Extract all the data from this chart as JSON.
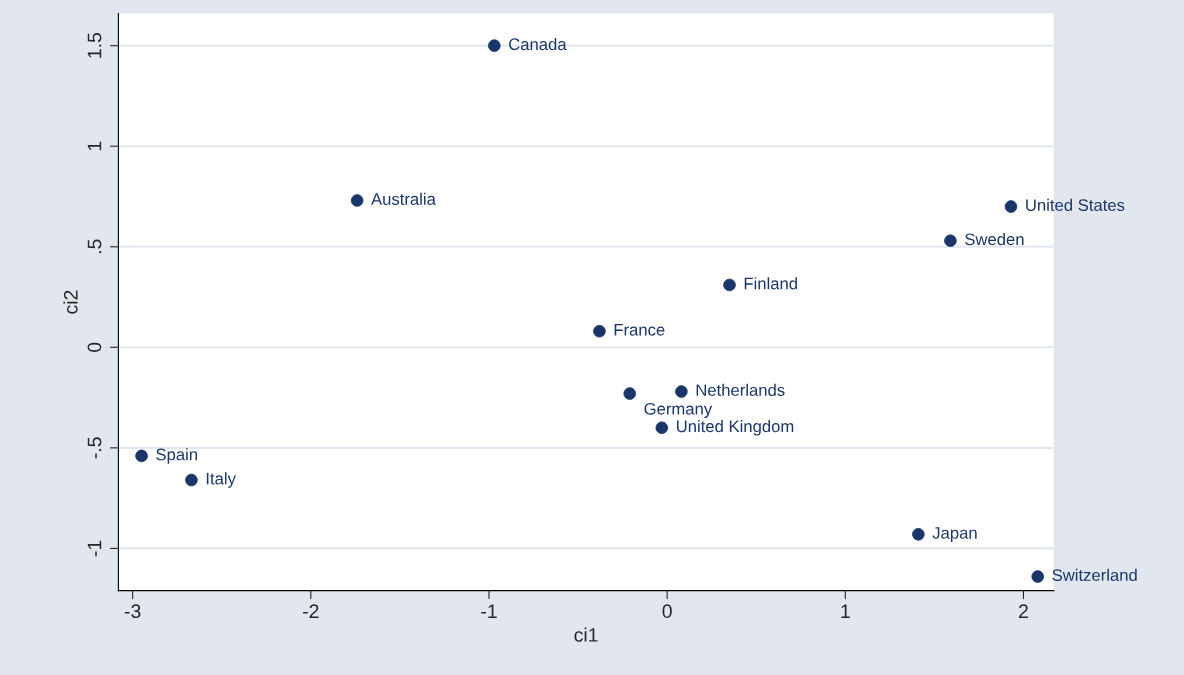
{
  "chart_data": {
    "type": "scatter",
    "xlabel": "ci1",
    "ylabel": "ci2",
    "x": [
      -0.97,
      -1.74,
      1.93,
      1.59,
      0.35,
      -0.38,
      -0.21,
      0.08,
      -0.03,
      -2.95,
      -2.67,
      1.41,
      2.08
    ],
    "series": [
      {
        "color": "#1a3668",
        "values": [
          1.5,
          0.73,
          0.7,
          0.53,
          0.31,
          0.08,
          -0.23,
          -0.22,
          -0.4,
          -0.54,
          -0.66,
          -0.93,
          -1.14
        ]
      }
    ],
    "annotations": [
      {
        "text": "Canada",
        "x": -0.97,
        "y": 1.5
      },
      {
        "text": "Australia",
        "x": -1.74,
        "y": 0.73
      },
      {
        "text": "United States",
        "x": 1.93,
        "y": 0.7
      },
      {
        "text": "Sweden",
        "x": 1.59,
        "y": 0.53
      },
      {
        "text": "Finland",
        "x": 0.35,
        "y": 0.31
      },
      {
        "text": "France",
        "x": -0.38,
        "y": 0.08
      },
      {
        "text": "Germany",
        "x": -0.21,
        "y": -0.23
      },
      {
        "text": "Netherlands",
        "x": 0.08,
        "y": -0.22
      },
      {
        "text": "United Kingdom",
        "x": -0.03,
        "y": -0.4
      },
      {
        "text": "Spain",
        "x": -2.95,
        "y": -0.54
      },
      {
        "text": "Italy",
        "x": -2.67,
        "y": -0.66
      },
      {
        "text": "Japan",
        "x": 1.41,
        "y": -0.93
      },
      {
        "text": "Switzerland",
        "x": 2.08,
        "y": -1.14
      }
    ],
    "xlim": [
      -3.08,
      2.17
    ],
    "xticks": [
      -3,
      -2,
      -1,
      0,
      1,
      2
    ],
    "ylim": [
      -1.21,
      1.66
    ],
    "yticks": [
      {
        "value": -1,
        "label": "-1"
      },
      {
        "value": -0.5,
        "label": "-.5"
      },
      0,
      {
        "value": 0.5,
        "label": ".5"
      },
      1,
      {
        "value": 1.5,
        "label": "1.5"
      }
    ],
    "grid": "y",
    "marker": "circle",
    "legend": false
  }
}
